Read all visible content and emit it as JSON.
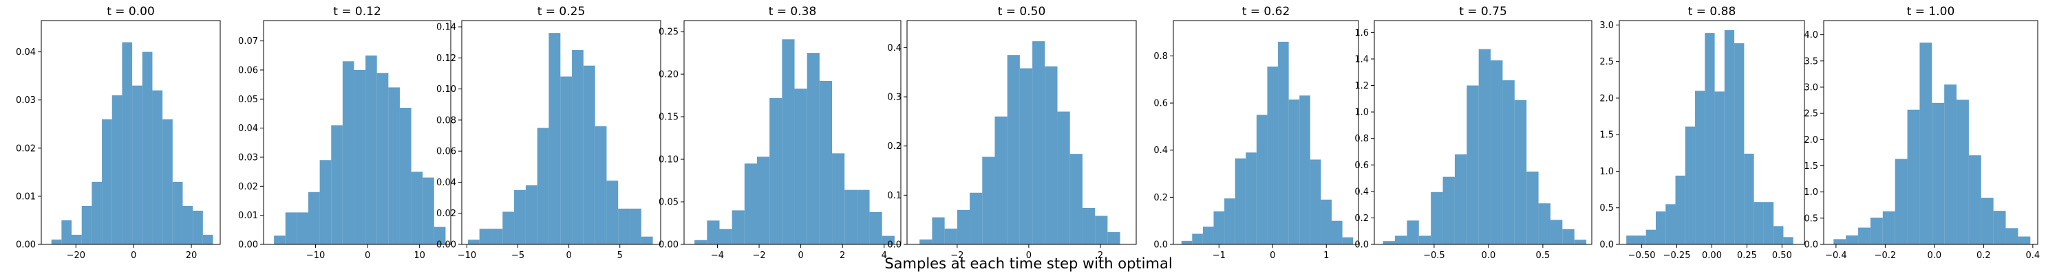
{
  "figure": {
    "suptitle": "Samples at each time step with optimal",
    "bar_color": "#5f9ec8"
  },
  "chart_data": [
    {
      "type": "bar",
      "title": "t = 0.00",
      "xlim": [
        -32,
        30
      ],
      "ylim": [
        0,
        0.0465
      ],
      "xticks": [
        -20,
        0,
        20
      ],
      "xtick_labels": [
        "−20",
        "0",
        "20"
      ],
      "yticks": [
        0,
        0.01,
        0.02,
        0.03,
        0.04
      ],
      "ytick_labels": [
        "0.00",
        "0.01",
        "0.02",
        "0.03",
        "0.04"
      ],
      "bin_edges": [
        -28.5,
        -25,
        -21.5,
        -18,
        -14.5,
        -11,
        -7.5,
        -4,
        -0.5,
        3,
        6.5,
        10,
        13.5,
        17,
        20.5,
        24,
        27.5
      ],
      "values": [
        0.001,
        0.005,
        0.002,
        0.008,
        0.013,
        0.026,
        0.031,
        0.042,
        0.033,
        0.04,
        0.032,
        0.026,
        0.013,
        0.008,
        0.007,
        0.002
      ]
    },
    {
      "type": "bar",
      "title": "t = 0.12",
      "xlim": [
        -20,
        16
      ],
      "ylim": [
        0,
        0.077
      ],
      "xticks": [
        -10,
        0,
        10
      ],
      "xtick_labels": [
        "−10",
        "0",
        "10"
      ],
      "yticks": [
        0,
        0.01,
        0.02,
        0.03,
        0.04,
        0.05,
        0.06,
        0.07
      ],
      "ytick_labels": [
        "0.00",
        "0.01",
        "0.02",
        "0.03",
        "0.04",
        "0.05",
        "0.06",
        "0.07"
      ],
      "bin_edges": [
        -18,
        -15.8,
        -13.6,
        -11.4,
        -9.2,
        -7,
        -4.8,
        -2.6,
        -0.4,
        1.8,
        4,
        6.2,
        8.4,
        10.6,
        12.8,
        15
      ],
      "values": [
        0.003,
        0.011,
        0.011,
        0.018,
        0.029,
        0.041,
        0.063,
        0.06,
        0.065,
        0.059,
        0.054,
        0.047,
        0.025,
        0.023,
        0.006
      ]
    },
    {
      "type": "bar",
      "title": "t = 0.25",
      "xlim": [
        -10.5,
        9
      ],
      "ylim": [
        0,
        0.144
      ],
      "xticks": [
        -10,
        -5,
        0,
        5
      ],
      "xtick_labels": [
        "−10",
        "−5",
        "0",
        "5"
      ],
      "yticks": [
        0,
        0.02,
        0.04,
        0.06,
        0.08,
        0.1,
        0.12,
        0.14
      ],
      "ytick_labels": [
        "0.00",
        "0.02",
        "0.04",
        "0.06",
        "0.08",
        "0.10",
        "0.12",
        "0.14"
      ],
      "bin_edges": [
        -9.9,
        -8.77,
        -7.63,
        -6.5,
        -5.37,
        -4.23,
        -3.1,
        -1.97,
        -0.83,
        0.3,
        1.43,
        2.57,
        3.7,
        4.83,
        5.97,
        7.1,
        8.23
      ],
      "values": [
        0.003,
        0.01,
        0.01,
        0.021,
        0.035,
        0.038,
        0.075,
        0.136,
        0.108,
        0.125,
        0.115,
        0.076,
        0.041,
        0.023,
        0.023,
        0.005
      ]
    },
    {
      "type": "bar",
      "title": "t = 0.38",
      "xlim": [
        -5.6,
        4.8
      ],
      "ylim": [
        0,
        0.263
      ],
      "xticks": [
        -4,
        -2,
        0,
        2,
        4
      ],
      "xtick_labels": [
        "−4",
        "−2",
        "0",
        "2",
        "4"
      ],
      "yticks": [
        0,
        0.05,
        0.1,
        0.15,
        0.2,
        0.25
      ],
      "ytick_labels": [
        "0.00",
        "0.05",
        "0.10",
        "0.15",
        "0.20",
        "0.25"
      ],
      "bin_edges": [
        -5.1,
        -4.5,
        -3.9,
        -3.3,
        -2.7,
        -2.1,
        -1.5,
        -0.9,
        -0.3,
        0.3,
        0.9,
        1.5,
        2.1,
        2.7,
        3.3,
        3.9,
        4.5
      ],
      "values": [
        0.005,
        0.028,
        0.018,
        0.04,
        0.095,
        0.103,
        0.172,
        0.241,
        0.183,
        0.225,
        0.192,
        0.107,
        0.064,
        0.064,
        0.038,
        0.01
      ]
    },
    {
      "type": "bar",
      "title": "t = 0.50",
      "xlim": [
        -3.4,
        3.0
      ],
      "ylim": [
        0,
        0.455
      ],
      "xticks": [
        -2,
        0,
        2
      ],
      "xtick_labels": [
        "−2",
        "0",
        "2"
      ],
      "yticks": [
        0,
        0.1,
        0.2,
        0.3,
        0.4
      ],
      "ytick_labels": [
        "0.0",
        "0.1",
        "0.2",
        "0.3",
        "0.4"
      ],
      "bin_edges": [
        -3.05,
        -2.7,
        -2.35,
        -2.0,
        -1.65,
        -1.3,
        -0.95,
        -0.6,
        -0.25,
        0.1,
        0.45,
        0.8,
        1.15,
        1.5,
        1.85,
        2.2,
        2.55
      ],
      "values": [
        0.01,
        0.055,
        0.032,
        0.07,
        0.105,
        0.178,
        0.26,
        0.385,
        0.358,
        0.413,
        0.362,
        0.27,
        0.184,
        0.074,
        0.058,
        0.025
      ]
    },
    {
      "type": "bar",
      "title": "t = 0.62",
      "xlim": [
        -1.85,
        1.6
      ],
      "ylim": [
        0,
        0.95
      ],
      "xticks": [
        -1,
        0,
        1
      ],
      "xtick_labels": [
        "−1",
        "0",
        "1"
      ],
      "yticks": [
        0,
        0.2,
        0.4,
        0.6,
        0.8
      ],
      "ytick_labels": [
        "0.0",
        "0.2",
        "0.4",
        "0.6",
        "0.8"
      ],
      "bin_edges": [
        -1.7,
        -1.5,
        -1.3,
        -1.1,
        -0.9,
        -0.7,
        -0.5,
        -0.3,
        -0.1,
        0.1,
        0.3,
        0.5,
        0.7,
        0.9,
        1.1,
        1.3,
        1.5
      ],
      "values": [
        0.015,
        0.045,
        0.075,
        0.14,
        0.195,
        0.365,
        0.39,
        0.55,
        0.755,
        0.86,
        0.615,
        0.632,
        0.36,
        0.19,
        0.1,
        0.03
      ]
    },
    {
      "type": "bar",
      "title": "t = 0.75",
      "xlim": [
        -1.05,
        0.95
      ],
      "ylim": [
        0,
        1.69
      ],
      "xticks": [
        -0.5,
        0,
        0.5
      ],
      "xtick_labels": [
        "−0.5",
        "0.0",
        "0.5"
      ],
      "yticks": [
        0,
        0.2,
        0.4,
        0.6,
        0.8,
        1.0,
        1.2,
        1.4,
        1.6
      ],
      "ytick_labels": [
        "0.0",
        "0.2",
        "0.4",
        "0.6",
        "0.8",
        "1.0",
        "1.2",
        "1.4",
        "1.6"
      ],
      "bin_edges": [
        -0.97,
        -0.86,
        -0.75,
        -0.64,
        -0.53,
        -0.42,
        -0.31,
        -0.2,
        -0.09,
        0.02,
        0.13,
        0.24,
        0.35,
        0.46,
        0.57,
        0.68,
        0.79,
        0.9
      ],
      "values": [
        0.025,
        0.065,
        0.18,
        0.065,
        0.395,
        0.51,
        0.68,
        1.2,
        1.475,
        1.39,
        1.24,
        1.09,
        0.55,
        0.31,
        0.185,
        0.115,
        0.035
      ]
    },
    {
      "type": "bar",
      "title": "t = 0.88",
      "xlim": [
        -0.66,
        0.66
      ],
      "ylim": [
        0,
        3.06
      ],
      "xticks": [
        -0.5,
        -0.25,
        0,
        0.25,
        0.5
      ],
      "xtick_labels": [
        "−0.50",
        "−0.25",
        "0.00",
        "0.25",
        "0.50"
      ],
      "yticks": [
        0,
        0.5,
        1.0,
        1.5,
        2.0,
        2.5,
        3.0
      ],
      "ytick_labels": [
        "0.0",
        "0.5",
        "1.0",
        "1.5",
        "2.0",
        "2.5",
        "3.0"
      ],
      "bin_edges": [
        -0.61,
        -0.54,
        -0.47,
        -0.4,
        -0.33,
        -0.26,
        -0.19,
        -0.12,
        -0.05,
        0.02,
        0.09,
        0.16,
        0.23,
        0.3,
        0.37,
        0.44,
        0.51,
        0.58
      ],
      "values": [
        0.12,
        0.12,
        0.2,
        0.45,
        0.55,
        0.94,
        1.61,
        2.1,
        2.89,
        2.09,
        2.93,
        2.75,
        1.24,
        0.58,
        0.58,
        0.25,
        0.1
      ]
    },
    {
      "type": "bar",
      "title": "t = 1.00",
      "xlim": [
        -0.45,
        0.42
      ],
      "ylim": [
        0,
        4.27
      ],
      "xticks": [
        -0.4,
        -0.2,
        0,
        0.2,
        0.4
      ],
      "xtick_labels": [
        "−0.4",
        "−0.2",
        "0.0",
        "0.2",
        "0.4"
      ],
      "yticks": [
        0,
        0.5,
        1.0,
        1.5,
        2.0,
        2.5,
        3.0,
        3.5,
        4.0
      ],
      "ytick_labels": [
        "0.0",
        "0.5",
        "1.0",
        "1.5",
        "2.0",
        "2.5",
        "3.0",
        "3.5",
        "4.0"
      ],
      "bin_edges": [
        -0.41,
        -0.36,
        -0.31,
        -0.26,
        -0.21,
        -0.16,
        -0.11,
        -0.06,
        -0.01,
        0.04,
        0.09,
        0.14,
        0.19,
        0.24,
        0.29,
        0.34,
        0.39
      ],
      "values": [
        0.1,
        0.17,
        0.32,
        0.51,
        0.63,
        1.63,
        2.57,
        3.85,
        2.7,
        3.05,
        2.76,
        1.7,
        0.89,
        0.64,
        0.31,
        0.15
      ]
    }
  ]
}
